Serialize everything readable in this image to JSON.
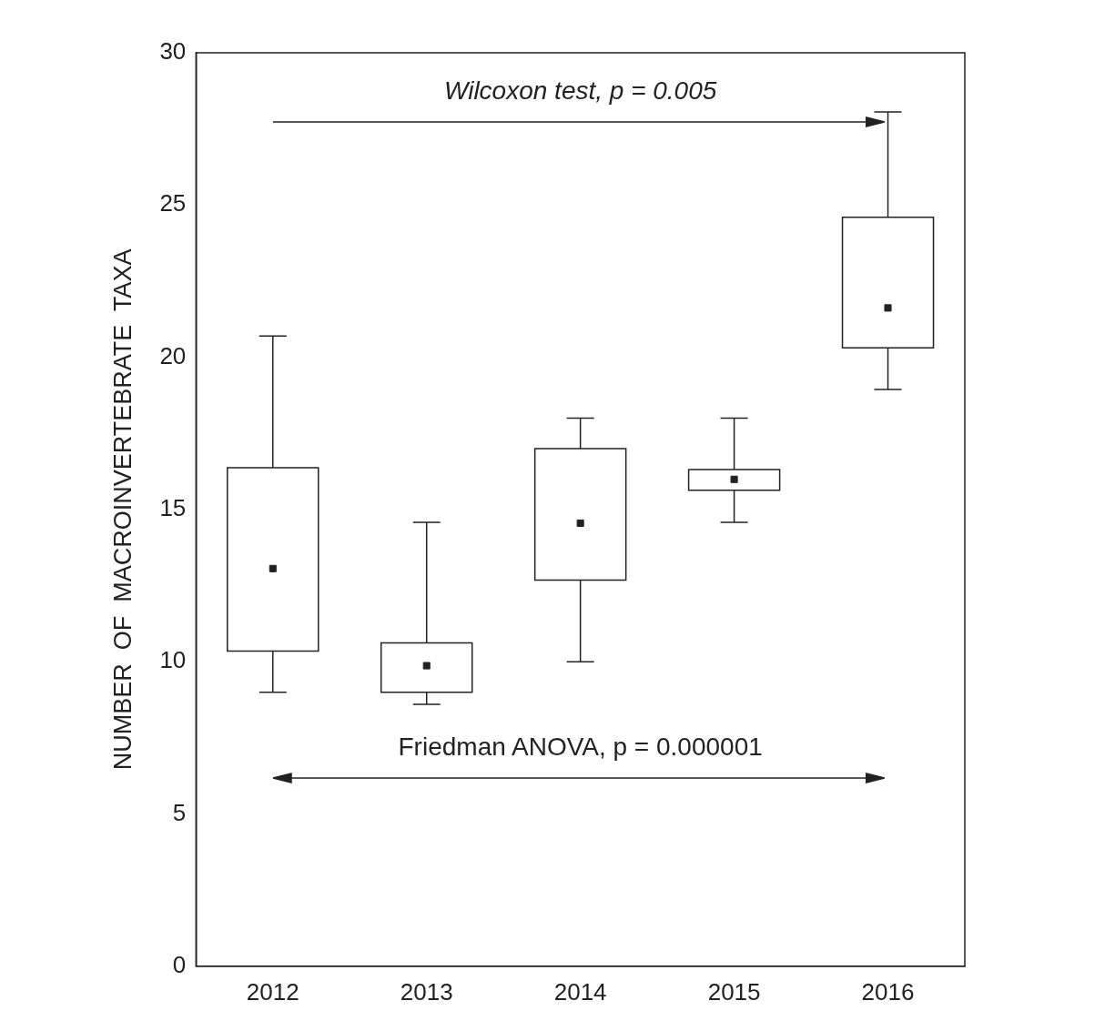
{
  "chart_data": {
    "type": "box",
    "categories": [
      "2012",
      "2013",
      "2014",
      "2015",
      "2016"
    ],
    "boxes": [
      {
        "low": 9.0,
        "q1": 10.35,
        "median": 13.06,
        "q3": 16.37,
        "high": 20.7
      },
      {
        "low": 8.6,
        "q1": 9.0,
        "median": 9.87,
        "q3": 10.62,
        "high": 14.58
      },
      {
        "low": 10.0,
        "q1": 12.68,
        "median": 14.55,
        "q3": 17.0,
        "high": 18.0
      },
      {
        "low": 14.58,
        "q1": 15.63,
        "median": 15.99,
        "q3": 16.31,
        "high": 18.0
      },
      {
        "low": 18.94,
        "q1": 20.31,
        "median": 21.62,
        "q3": 24.6,
        "high": 28.06
      }
    ],
    "color": "#222222",
    "marker": "square",
    "ylabel": "NUMBER  OF  MACROINVERTEBRATE  TAXA",
    "ylim": [
      0,
      30
    ],
    "yticks": [
      0,
      5,
      10,
      15,
      20,
      25,
      30
    ],
    "annotations": [
      "Wilcoxon test, p = 0.005",
      "Friedman ANOVA, p = 0.000001"
    ]
  }
}
